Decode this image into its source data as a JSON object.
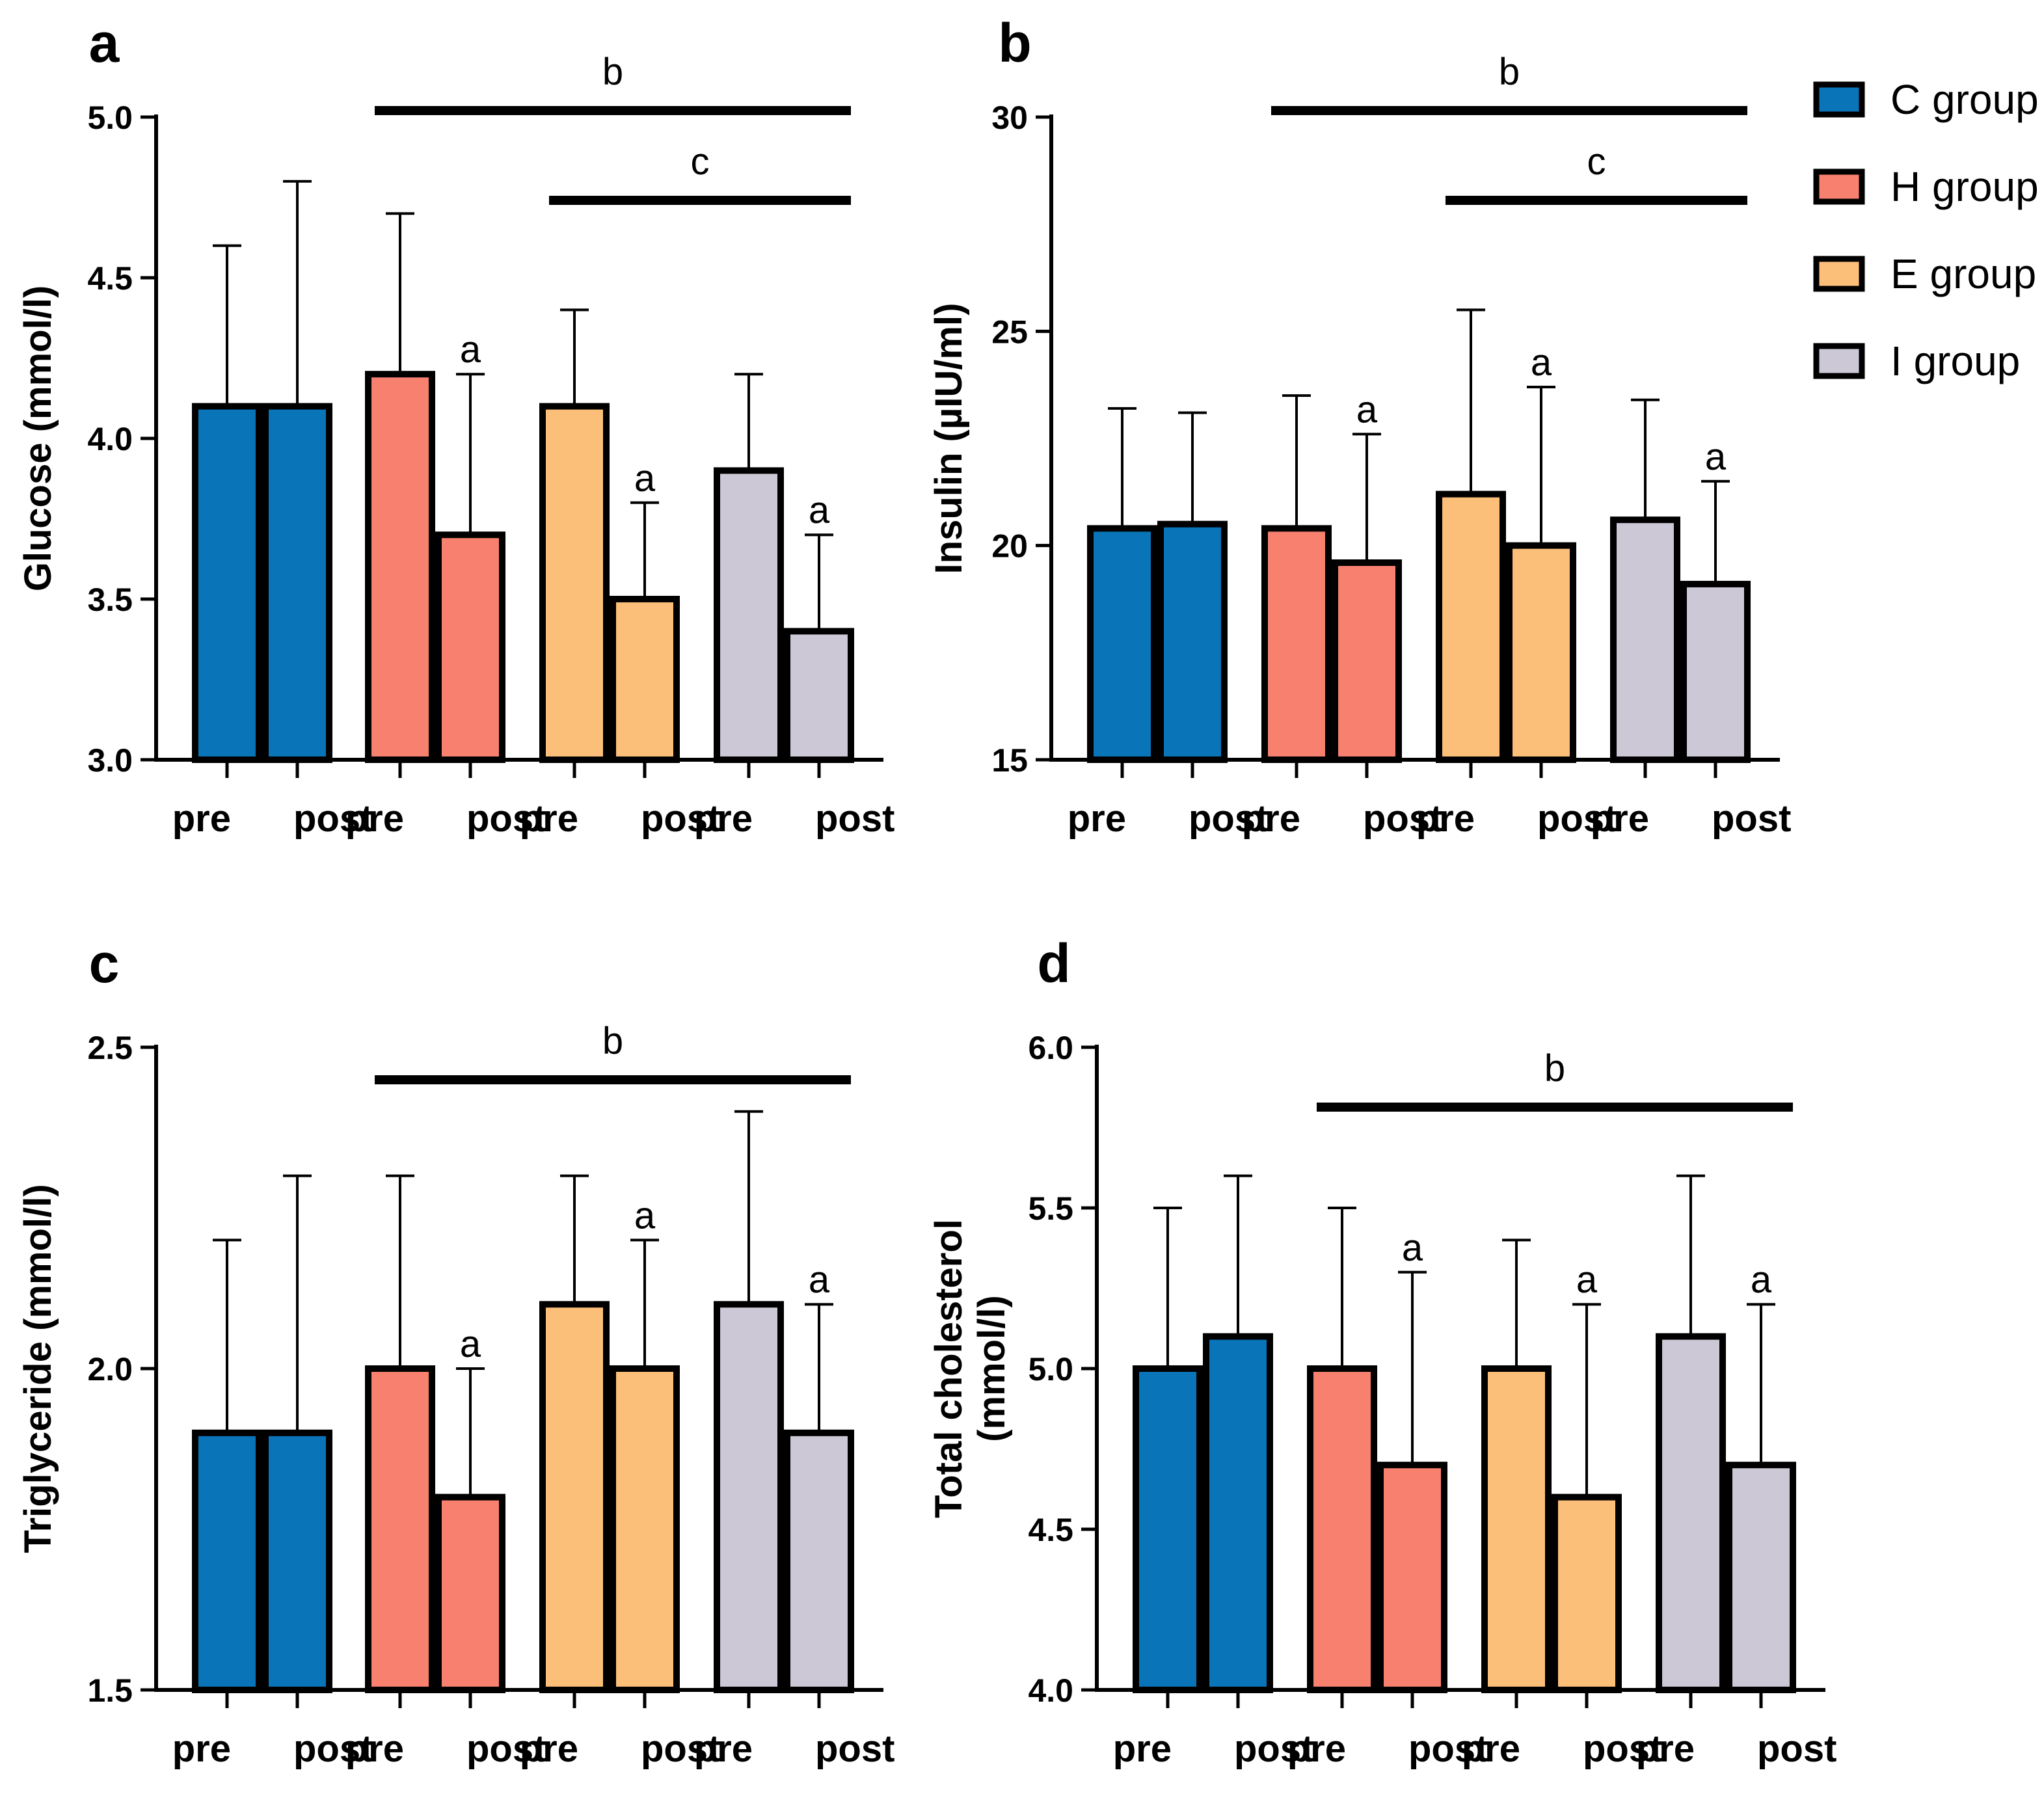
{
  "colors": {
    "C group": "#0a74b8",
    "H group": "#f7806e",
    "E group": "#fcbf79",
    "I group": "#ccc8d6"
  },
  "legend": [
    "C group",
    "H group",
    "E group",
    "I group"
  ],
  "chart_data": [
    {
      "panel": "a",
      "type": "bar",
      "ylabel": "Glucose (mmol/l)",
      "ylim": [
        3.0,
        5.0
      ],
      "yticks": [
        "3.0",
        "3.5",
        "4.0",
        "4.5",
        "5.0"
      ],
      "groups": [
        "C group",
        "H group",
        "E group",
        "I group"
      ],
      "categories": [
        "pre",
        "post"
      ],
      "values": [
        [
          4.1,
          4.1
        ],
        [
          4.2,
          3.7
        ],
        [
          4.1,
          3.5
        ],
        [
          3.9,
          3.4
        ]
      ],
      "error_upper": [
        [
          4.6,
          4.8
        ],
        [
          4.7,
          4.2
        ],
        [
          4.4,
          3.8
        ],
        [
          4.2,
          3.7
        ]
      ],
      "post_marks": [
        "",
        "a",
        "a",
        "a"
      ],
      "sig_lines": [
        {
          "label": "b",
          "from_group": 1,
          "to_group": 3
        },
        {
          "label": "c",
          "from_group": 2,
          "to_group": 3
        }
      ]
    },
    {
      "panel": "b",
      "type": "bar",
      "ylabel": "Insulin (µIU/ml)",
      "ylim": [
        15,
        30
      ],
      "yticks": [
        "15",
        "20",
        "25",
        "30"
      ],
      "groups": [
        "C group",
        "H group",
        "E group",
        "I group"
      ],
      "categories": [
        "pre",
        "post"
      ],
      "values": [
        [
          20.4,
          20.5
        ],
        [
          20.4,
          19.6
        ],
        [
          21.2,
          20.0
        ],
        [
          20.6,
          19.1
        ]
      ],
      "error_upper": [
        [
          23.2,
          23.1
        ],
        [
          23.5,
          22.6
        ],
        [
          25.5,
          23.7
        ],
        [
          23.4,
          21.5
        ]
      ],
      "post_marks": [
        "",
        "a",
        "a",
        "a"
      ],
      "sig_lines": [
        {
          "label": "b",
          "from_group": 1,
          "to_group": 3
        },
        {
          "label": "c",
          "from_group": 2,
          "to_group": 3
        }
      ]
    },
    {
      "panel": "c",
      "type": "bar",
      "ylabel": "Triglyceride (mmol/l)",
      "ylim": [
        1.5,
        2.5
      ],
      "yticks": [
        "1.5",
        "2.0",
        "2.5"
      ],
      "groups": [
        "C group",
        "H group",
        "E group",
        "I group"
      ],
      "categories": [
        "pre",
        "post"
      ],
      "values": [
        [
          1.9,
          1.9
        ],
        [
          2.0,
          1.8
        ],
        [
          2.1,
          2.0
        ],
        [
          2.1,
          1.9
        ]
      ],
      "error_upper": [
        [
          2.2,
          2.3
        ],
        [
          2.3,
          2.0
        ],
        [
          2.3,
          2.2
        ],
        [
          2.4,
          2.1
        ]
      ],
      "post_marks": [
        "",
        "a",
        "a",
        "a"
      ],
      "sig_lines": [
        {
          "label": "b",
          "from_group": 1,
          "to_group": 3
        }
      ]
    },
    {
      "panel": "d",
      "type": "bar",
      "ylabel": [
        "Total cholesterol",
        "(mmol/l)"
      ],
      "ylim": [
        4.0,
        6.0
      ],
      "yticks": [
        "4.0",
        "4.5",
        "5.0",
        "5.5",
        "6.0"
      ],
      "groups": [
        "C group",
        "H group",
        "E group",
        "I group"
      ],
      "categories": [
        "pre",
        "post"
      ],
      "values": [
        [
          5.0,
          5.1
        ],
        [
          5.0,
          4.7
        ],
        [
          5.0,
          4.6
        ],
        [
          5.1,
          4.7
        ]
      ],
      "error_upper": [
        [
          5.5,
          5.6
        ],
        [
          5.5,
          5.3
        ],
        [
          5.4,
          5.2
        ],
        [
          5.6,
          5.2
        ]
      ],
      "post_marks": [
        "",
        "a",
        "a",
        "a"
      ],
      "sig_lines": [
        {
          "label": "b",
          "from_group": 1,
          "to_group": 3
        }
      ]
    }
  ]
}
